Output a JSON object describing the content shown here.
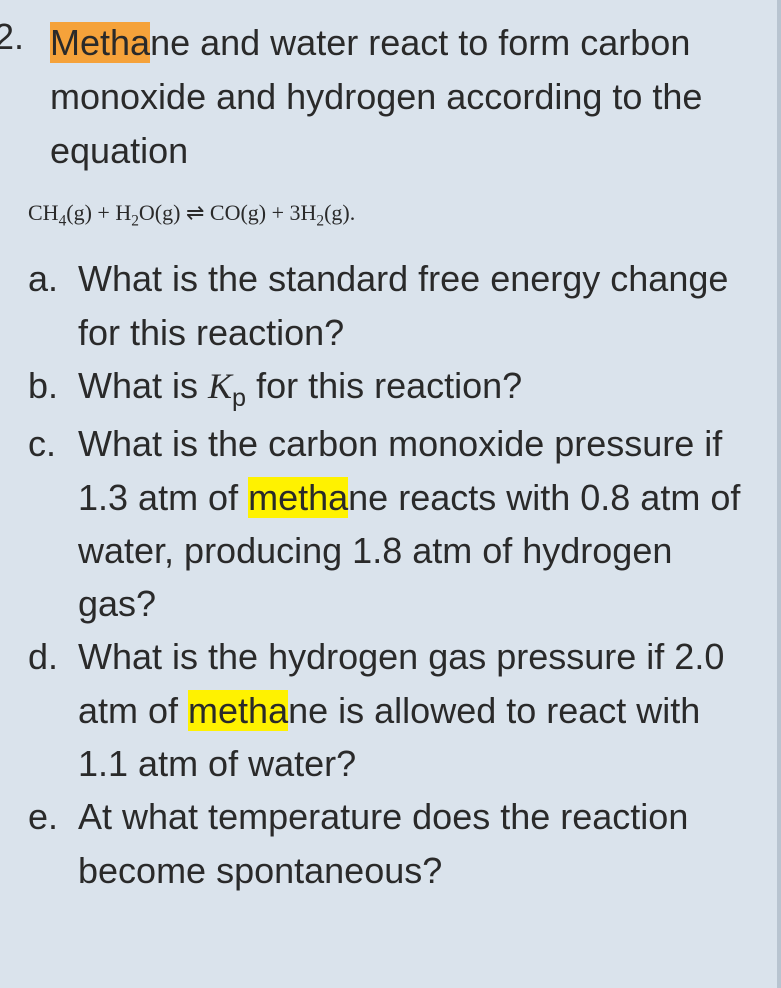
{
  "colors": {
    "page_background": "#dae3ec",
    "text": "#2a2a2a",
    "highlight_orange": "#f5a23a",
    "highlight_yellow": "#fff200",
    "right_border": "#b8c4d0"
  },
  "typography": {
    "body_font": "Arial",
    "body_fontsize_pt": 27,
    "equation_font": "Times New Roman",
    "equation_fontsize_pt": 16
  },
  "question": {
    "number": "2.",
    "intro_parts": {
      "hl": "Metha",
      "rest": "ne and water react to form carbon monoxide and hydrogen according to the equation"
    },
    "equation": {
      "plain": "CH4(g) + H2O(g) ⇌ CO(g) + 3H2(g).",
      "tokens": [
        {
          "t": "CH"
        },
        {
          "t": "4",
          "sub": true
        },
        {
          "t": "(g) + H"
        },
        {
          "t": "2",
          "sub": true
        },
        {
          "t": "O(g) ⇌ CO(g) + 3H"
        },
        {
          "t": "2",
          "sub": true
        },
        {
          "t": "(g)."
        }
      ]
    },
    "parts": {
      "a": {
        "label": "a.",
        "text": "What is the standard free energy change for this reaction?"
      },
      "b": {
        "label": "b.",
        "pre": "What is ",
        "var": "K",
        "varsub": "p",
        "post": " for this reaction?"
      },
      "c": {
        "label": "c.",
        "pre": "What is the carbon monoxide pressure if 1.3 atm of ",
        "hl": "metha",
        "post": "ne reacts with 0.8 atm of water, producing 1.8 atm of hydrogen gas?"
      },
      "d": {
        "label": "d.",
        "pre": "What is the hydrogen gas pressure if 2.0 atm of ",
        "hl": "metha",
        "post": "ne is allowed to react with 1.1 atm of water?"
      },
      "e": {
        "label": "e.",
        "text": "At what temperature does the reaction become spontaneous?"
      }
    }
  }
}
